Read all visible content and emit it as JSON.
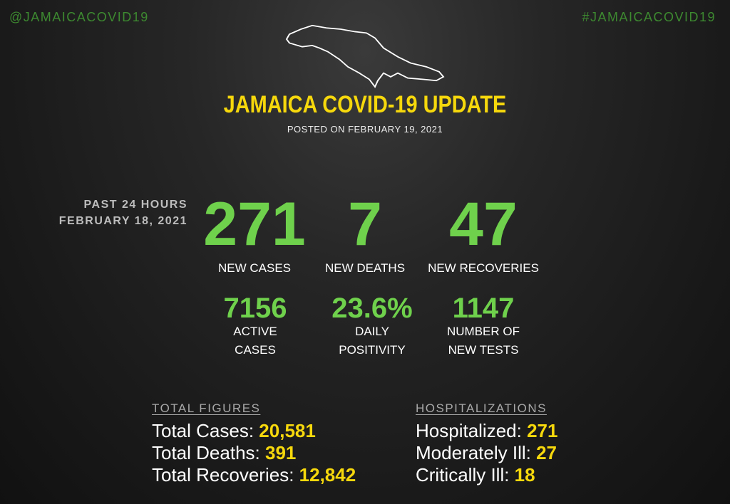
{
  "handles": {
    "left": "@JAMAICACOVID19",
    "right": "#JAMAICACOVID19"
  },
  "header": {
    "title": "JAMAICA COVID-19 UPDATE",
    "posted": "POSTED ON FEBRUARY 19, 2021",
    "map_icon": "jamaica-outline"
  },
  "period": {
    "line1": "PAST 24 HOURS",
    "line2": "FEBRUARY 18,  2021"
  },
  "daily": [
    {
      "value": "271",
      "label": "NEW CASES"
    },
    {
      "value": "7",
      "label": "NEW DEATHS"
    },
    {
      "value": "47",
      "label": "NEW RECOVERIES"
    }
  ],
  "secondary": [
    {
      "value": "7156",
      "label1": "ACTIVE",
      "label2": "CASES"
    },
    {
      "value": "23.6%",
      "label1": "DAILY",
      "label2": "POSITIVITY"
    },
    {
      "value": "1147",
      "label1": "NUMBER OF",
      "label2": "NEW TESTS"
    }
  ],
  "totals": {
    "heading": "TOTAL FIGURES",
    "rows": [
      {
        "label": "Total Cases: ",
        "value": "20,581"
      },
      {
        "label": "Total Deaths: ",
        "value": "391"
      },
      {
        "label": "Total Recoveries: ",
        "value": "12,842"
      }
    ]
  },
  "hospital": {
    "heading": "HOSPITALIZATIONS",
    "rows": [
      {
        "label": "Hospitalized: ",
        "value": "271"
      },
      {
        "label": "Moderately Ill: ",
        "value": "27"
      },
      {
        "label": "Critically Ill: ",
        "value": "18"
      }
    ]
  },
  "colors": {
    "green": "#6fd14c",
    "yellow": "#f6d80c",
    "handle": "#3d8a30"
  }
}
